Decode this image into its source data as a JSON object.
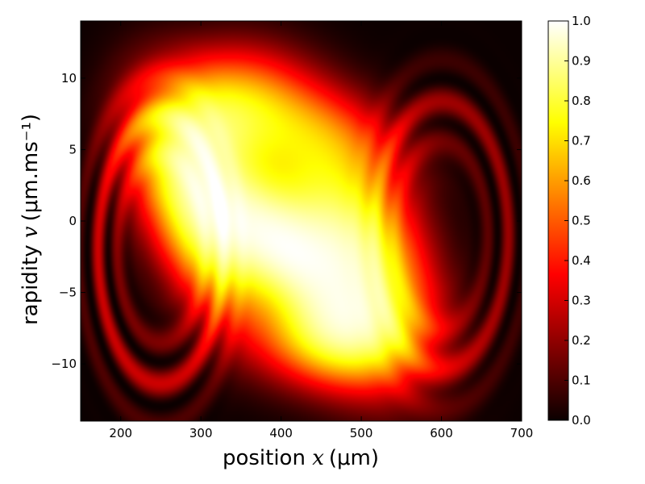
{
  "chart_data": {
    "type": "heatmap",
    "xlabel": {
      "prefix": "position ",
      "var": "x",
      "unit": "(μm)"
    },
    "ylabel": {
      "prefix": "rapidity ",
      "var": "v",
      "unit": "(μm.ms⁻¹)"
    },
    "xlim": [
      150,
      700
    ],
    "ylim": [
      -14,
      14
    ],
    "x_ticks": [
      200,
      300,
      400,
      500,
      600,
      700
    ],
    "x_tick_labels": [
      "200",
      "300",
      "400",
      "500",
      "600",
      "700"
    ],
    "y_ticks": [
      10,
      5,
      0,
      -5,
      -10
    ],
    "y_tick_labels": [
      "10",
      "5",
      "0",
      "−5",
      "−10"
    ],
    "colorbar": {
      "range": [
        0.0,
        1.0
      ],
      "ticks": [
        0.0,
        0.1,
        0.2,
        0.3,
        0.4,
        0.5,
        0.6,
        0.7,
        0.8,
        0.9,
        1.0
      ],
      "tick_labels": [
        "0.0",
        "0.1",
        "0.2",
        "0.3",
        "0.4",
        "0.5",
        "0.6",
        "0.7",
        "0.8",
        "0.9",
        "1.0"
      ],
      "colormap": "hot"
    },
    "grid": false,
    "blobs": [
      {
        "x": 305,
        "y": 1.0,
        "sx": 50,
        "sy": 4.5,
        "rho": -0.45,
        "amp": 1.0
      },
      {
        "x": 480,
        "y": -2.5,
        "sx": 60,
        "sy": 4.8,
        "rho": -0.35,
        "amp": 1.0
      },
      {
        "x": 395,
        "y": -1.5,
        "sx": 45,
        "sy": 3.0,
        "rho": -0.5,
        "amp": 0.7
      },
      {
        "x": 330,
        "y": 7.5,
        "sx": 60,
        "sy": 2.8,
        "rho": 0.1,
        "amp": 0.55
      },
      {
        "x": 440,
        "y": 6.0,
        "sx": 70,
        "sy": 2.5,
        "rho": -0.3,
        "amp": 0.3
      },
      {
        "x": 470,
        "y": -8.0,
        "sx": 60,
        "sy": 2.2,
        "rho": 0.0,
        "amp": 0.55
      }
    ],
    "fringes": [
      {
        "x": 250,
        "y": -2.0,
        "r": 75,
        "amp": 0.35
      },
      {
        "x": 600,
        "y": -1.0,
        "r": 80,
        "amp": 0.25
      }
    ]
  }
}
